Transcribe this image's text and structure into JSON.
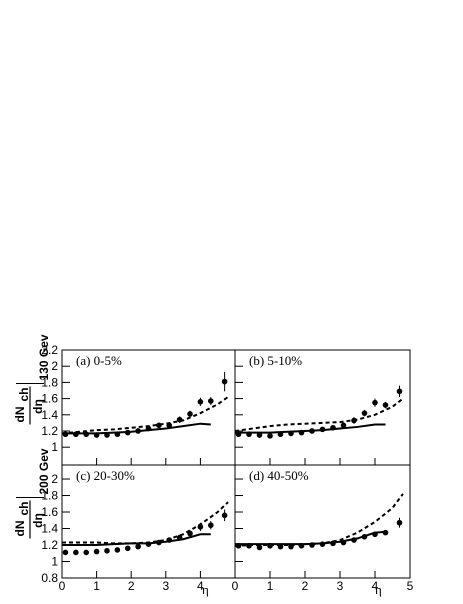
{
  "chart_data": [
    {
      "type": "line",
      "label": "(a)  0-5%",
      "y_label": {
        "numerator": "dN",
        "subscript": "ch",
        "denominator": "dη",
        "energy": "130 Gev"
      },
      "xlim": [
        0,
        5
      ],
      "ylim": [
        0.78,
        2.2
      ],
      "xticks": [
        0,
        1,
        2,
        3,
        4,
        5
      ],
      "yticks": [
        1,
        1.2,
        1.4,
        1.6,
        1.8,
        2,
        2.2
      ],
      "show_xtick_labels": false,
      "show_ytick_labels": true,
      "points": {
        "x": [
          0.1,
          0.4,
          0.7,
          1.0,
          1.3,
          1.6,
          1.9,
          2.2,
          2.5,
          2.8,
          3.1,
          3.4,
          3.7,
          4.0,
          4.3,
          4.7
        ],
        "values": [
          1.16,
          1.16,
          1.16,
          1.15,
          1.15,
          1.16,
          1.18,
          1.2,
          1.23,
          1.27,
          1.27,
          1.34,
          1.41,
          1.56,
          1.57,
          1.81
        ],
        "errors": [
          null,
          null,
          null,
          null,
          null,
          null,
          null,
          null,
          null,
          null,
          null,
          0.04,
          0.04,
          0.05,
          0.05,
          0.12
        ]
      },
      "solid": {
        "x": [
          0,
          0.5,
          1,
          1.5,
          2,
          2.5,
          3,
          3.5,
          4,
          4.3
        ],
        "values": [
          1.17,
          1.17,
          1.17,
          1.18,
          1.19,
          1.21,
          1.23,
          1.26,
          1.29,
          1.28
        ]
      },
      "dashed": {
        "x": [
          0,
          0.5,
          1,
          1.5,
          2,
          2.5,
          3,
          3.5,
          4,
          4.5,
          4.8
        ],
        "values": [
          1.17,
          1.19,
          1.21,
          1.22,
          1.24,
          1.26,
          1.29,
          1.33,
          1.42,
          1.53,
          1.62
        ]
      }
    },
    {
      "type": "line",
      "label": "(b)  5-10%",
      "xlim": [
        0,
        5
      ],
      "ylim": [
        0.78,
        2.2
      ],
      "xticks": [
        0,
        1,
        2,
        3,
        4,
        5
      ],
      "yticks": [
        1,
        1.2,
        1.4,
        1.6,
        1.8,
        2,
        2.2
      ],
      "show_xtick_labels": false,
      "show_ytick_labels": false,
      "points": {
        "x": [
          0.1,
          0.4,
          0.7,
          1.0,
          1.3,
          1.6,
          1.9,
          2.2,
          2.5,
          2.8,
          3.1,
          3.4,
          3.7,
          4.0,
          4.3,
          4.7
        ],
        "values": [
          1.16,
          1.16,
          1.15,
          1.14,
          1.16,
          1.17,
          1.18,
          1.2,
          1.22,
          1.24,
          1.27,
          1.33,
          1.42,
          1.55,
          1.52,
          1.69
        ],
        "errors": [
          null,
          null,
          null,
          null,
          null,
          null,
          null,
          null,
          null,
          null,
          null,
          0.04,
          0.04,
          0.05,
          0.04,
          0.07
        ]
      },
      "solid": {
        "x": [
          0,
          0.5,
          1,
          1.5,
          2,
          2.5,
          3,
          3.5,
          4,
          4.3
        ],
        "values": [
          1.18,
          1.18,
          1.18,
          1.19,
          1.2,
          1.21,
          1.23,
          1.25,
          1.28,
          1.28
        ]
      },
      "dashed": {
        "x": [
          0,
          0.5,
          1,
          1.5,
          2,
          2.5,
          3,
          3.5,
          4,
          4.5,
          4.8
        ],
        "values": [
          1.2,
          1.23,
          1.26,
          1.28,
          1.29,
          1.3,
          1.31,
          1.34,
          1.4,
          1.5,
          1.6
        ]
      }
    },
    {
      "type": "line",
      "label": "(c)  20-30%",
      "y_label": {
        "numerator": "dN",
        "subscript": "ch",
        "denominator": "dη",
        "energy": "200 Gev"
      },
      "xlim": [
        0,
        5
      ],
      "ylim": [
        0.8,
        2.17
      ],
      "xticks": [
        0,
        1,
        2,
        3,
        4
      ],
      "yticks": [
        0.8,
        1,
        1.2,
        1.4,
        1.6,
        1.8,
        2
      ],
      "show_xtick_labels": true,
      "show_ytick_labels": true,
      "x_label": "η",
      "points": {
        "x": [
          0.1,
          0.4,
          0.7,
          1.0,
          1.3,
          1.6,
          1.9,
          2.2,
          2.5,
          2.8,
          3.1,
          3.4,
          3.7,
          4.0,
          4.3,
          4.7
        ],
        "values": [
          1.11,
          1.11,
          1.11,
          1.12,
          1.13,
          1.14,
          1.16,
          1.18,
          1.21,
          1.23,
          1.26,
          1.29,
          1.34,
          1.42,
          1.44,
          1.56
        ],
        "errors": [
          null,
          null,
          null,
          null,
          null,
          null,
          null,
          null,
          null,
          null,
          null,
          0.03,
          0.04,
          0.05,
          0.05,
          0.07
        ]
      },
      "solid": {
        "x": [
          0,
          0.5,
          1,
          1.5,
          2,
          2.5,
          3,
          3.5,
          4,
          4.3
        ],
        "values": [
          1.2,
          1.2,
          1.2,
          1.21,
          1.22,
          1.22,
          1.24,
          1.27,
          1.33,
          1.33
        ]
      },
      "dashed": {
        "x": [
          0,
          0.5,
          1,
          1.5,
          2,
          2.5,
          3,
          3.5,
          4,
          4.5,
          4.8
        ],
        "values": [
          1.23,
          1.23,
          1.23,
          1.22,
          1.22,
          1.23,
          1.26,
          1.33,
          1.45,
          1.6,
          1.72
        ]
      }
    },
    {
      "type": "line",
      "label": "(d)  40-50%",
      "xlim": [
        0,
        5
      ],
      "ylim": [
        0.8,
        2.17
      ],
      "xticks": [
        0,
        1,
        2,
        3,
        4,
        5
      ],
      "yticks": [
        0.8,
        1,
        1.2,
        1.4,
        1.6,
        1.8,
        2
      ],
      "show_xtick_labels": true,
      "show_ytick_labels": false,
      "x_label": "η",
      "points": {
        "x": [
          0.1,
          0.4,
          0.7,
          1.0,
          1.3,
          1.6,
          1.9,
          2.2,
          2.5,
          2.8,
          3.1,
          3.4,
          3.7,
          4.0,
          4.3,
          4.7
        ],
        "values": [
          1.19,
          1.19,
          1.17,
          1.19,
          1.18,
          1.18,
          1.19,
          1.2,
          1.21,
          1.22,
          1.23,
          1.26,
          1.3,
          1.33,
          1.35,
          1.47
        ],
        "errors": [
          null,
          null,
          null,
          null,
          null,
          null,
          null,
          null,
          null,
          null,
          null,
          null,
          0.03,
          0.03,
          0.03,
          0.06
        ]
      },
      "solid": {
        "x": [
          0,
          0.5,
          1,
          1.5,
          2,
          2.5,
          3,
          3.5,
          4,
          4.3
        ],
        "values": [
          1.21,
          1.21,
          1.21,
          1.21,
          1.21,
          1.22,
          1.24,
          1.28,
          1.35,
          1.36
        ]
      },
      "dashed": {
        "x": [
          0,
          0.5,
          1,
          1.5,
          2,
          2.5,
          3,
          3.5,
          4,
          4.5,
          4.8
        ],
        "values": [
          1.19,
          1.2,
          1.2,
          1.2,
          1.21,
          1.22,
          1.26,
          1.35,
          1.48,
          1.65,
          1.82
        ]
      }
    }
  ]
}
